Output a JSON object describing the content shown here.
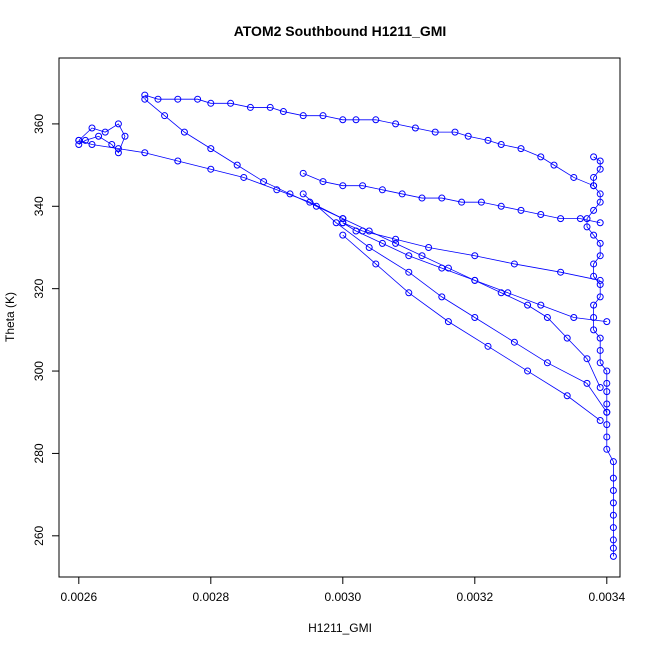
{
  "chart_data": {
    "type": "scatter",
    "title": "ATOM2 Southbound H1211_GMI",
    "xlabel": "H1211_GMI",
    "ylabel": "Theta (K)",
    "xlim": [
      0.00257,
      0.00342
    ],
    "ylim": [
      250,
      376
    ],
    "xticks": [
      "0.0026",
      "0.0028",
      "0.0030",
      "0.0032",
      "0.0034"
    ],
    "xtick_values": [
      0.0026,
      0.0028,
      0.003,
      0.0032,
      0.0034
    ],
    "yticks": [
      "260",
      "280",
      "300",
      "320",
      "340",
      "360"
    ],
    "ytick_values": [
      260,
      280,
      300,
      320,
      340,
      360
    ],
    "grid": false,
    "marker": "open-circle",
    "connected": true,
    "color": "#0000ff",
    "series": [
      {
        "x": [
          0.00341,
          0.00341,
          0.00341,
          0.00341,
          0.00341,
          0.00341,
          0.00341,
          0.00341,
          0.00341,
          0.0034,
          0.0034,
          0.0034,
          0.0034,
          0.0034,
          0.0034,
          0.0034,
          0.0034,
          0.00339,
          0.00339,
          0.00339,
          0.00338,
          0.00338,
          0.00338,
          0.00339,
          0.00339,
          0.00338,
          0.00338,
          0.00339,
          0.00339,
          0.00338,
          0.00337,
          0.00337,
          0.00338,
          0.00339,
          0.00339,
          0.00338,
          0.00338,
          0.00339,
          0.00339,
          0.00338
        ],
        "y": [
          255,
          257,
          259,
          262,
          265,
          268,
          271,
          274,
          278,
          281,
          284,
          287,
          290,
          292,
          295,
          297,
          300,
          302,
          305,
          308,
          310,
          313,
          316,
          318,
          321,
          323,
          326,
          328,
          331,
          333,
          335,
          337,
          339,
          341,
          343,
          345,
          347,
          349,
          351,
          352
        ]
      },
      {
        "x": [
          0.00338,
          0.00335,
          0.00332,
          0.0033,
          0.00327,
          0.00324,
          0.00322,
          0.00319,
          0.00317,
          0.00314,
          0.00311,
          0.00308,
          0.00305,
          0.00302,
          0.003,
          0.00297,
          0.00294,
          0.00291,
          0.00289,
          0.00286,
          0.00283,
          0.0028,
          0.00278,
          0.00275,
          0.00272,
          0.0027
        ],
        "y": [
          345,
          347,
          350,
          352,
          354,
          355,
          356,
          357,
          358,
          358,
          359,
          360,
          361,
          361,
          361,
          362,
          362,
          363,
          364,
          364,
          365,
          365,
          366,
          366,
          366,
          367
        ]
      },
      {
        "x": [
          0.0027,
          0.00273,
          0.00276,
          0.0028,
          0.00284,
          0.00288,
          0.00292,
          0.00296,
          0.003,
          0.00304,
          0.00308,
          0.00312,
          0.00316,
          0.0032,
          0.00324,
          0.00328,
          0.00331,
          0.00334,
          0.00337,
          0.00339
        ],
        "y": [
          366,
          362,
          358,
          354,
          350,
          346,
          343,
          340,
          337,
          334,
          331,
          328,
          325,
          322,
          319,
          316,
          313,
          308,
          303,
          296
        ]
      },
      {
        "x": [
          0.00339,
          0.00336,
          0.00333,
          0.0033,
          0.00327,
          0.00324,
          0.00321,
          0.00318,
          0.00315,
          0.00312,
          0.00309,
          0.00306,
          0.00303,
          0.003,
          0.00297,
          0.00294
        ],
        "y": [
          336,
          337,
          337,
          338,
          339,
          340,
          341,
          341,
          342,
          342,
          343,
          344,
          345,
          345,
          346,
          348
        ]
      },
      {
        "x": [
          0.00294,
          0.00299,
          0.00304,
          0.0031,
          0.00315,
          0.0032,
          0.00326,
          0.00331,
          0.00337,
          0.0034
        ],
        "y": [
          343,
          336,
          330,
          324,
          318,
          313,
          307,
          302,
          297,
          290
        ]
      },
      {
        "x": [
          0.0034,
          0.00335,
          0.0033,
          0.00325,
          0.0032,
          0.00315,
          0.0031,
          0.00306,
          0.00302,
          0.003
        ],
        "y": [
          312,
          313,
          316,
          319,
          322,
          325,
          328,
          331,
          334,
          336
        ]
      },
      {
        "x": [
          0.003,
          0.00305,
          0.0031,
          0.00316,
          0.00322,
          0.00328,
          0.00334,
          0.00339
        ],
        "y": [
          333,
          326,
          319,
          312,
          306,
          300,
          294,
          288
        ]
      },
      {
        "x": [
          0.00339,
          0.00333,
          0.00326,
          0.0032,
          0.00313,
          0.00308,
          0.00303,
          0.003
        ],
        "y": [
          322,
          324,
          326,
          328,
          330,
          332,
          334,
          336
        ]
      },
      {
        "x": [
          0.003,
          0.00295,
          0.0029,
          0.00285,
          0.0028,
          0.00275,
          0.0027,
          0.00266,
          0.00262,
          0.0026
        ],
        "y": [
          337,
          341,
          344,
          347,
          349,
          351,
          353,
          354,
          355,
          356
        ]
      },
      {
        "x": [
          0.0026,
          0.00262,
          0.00264,
          0.00266,
          0.00267,
          0.00266,
          0.00265,
          0.00263,
          0.00261,
          0.0026
        ],
        "y": [
          356,
          359,
          358,
          360,
          357,
          353,
          355,
          357,
          356,
          355
        ]
      }
    ]
  }
}
